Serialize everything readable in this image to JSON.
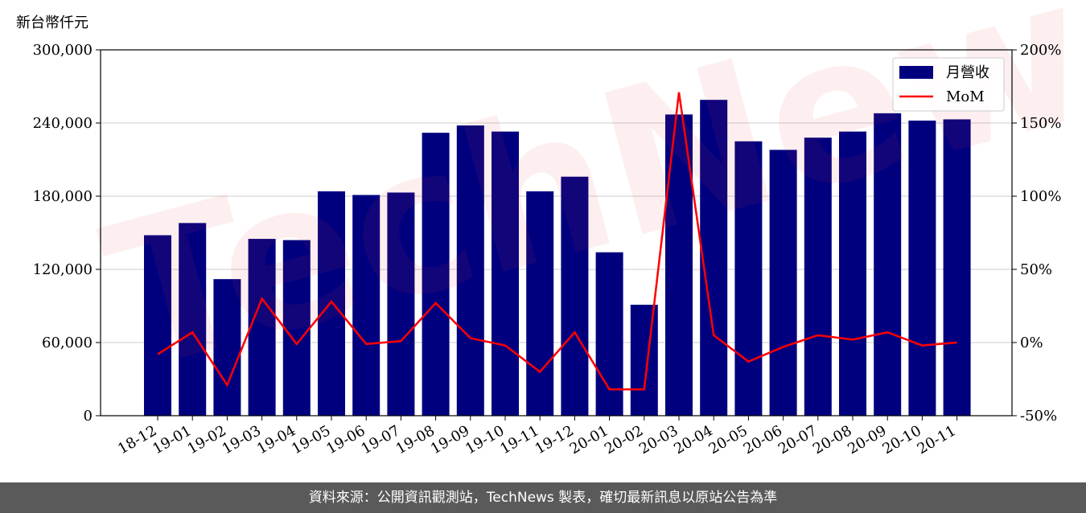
{
  "chart_data": {
    "type": "bar",
    "y_unit_label": "新台幣仟元",
    "categories": [
      "18-12",
      "19-01",
      "19-02",
      "19-03",
      "19-04",
      "19-05",
      "19-06",
      "19-07",
      "19-08",
      "19-09",
      "19-10",
      "19-11",
      "19-12",
      "20-01",
      "20-02",
      "20-03",
      "20-04",
      "20-05",
      "20-06",
      "20-07",
      "20-08",
      "20-09",
      "20-10",
      "20-11"
    ],
    "series": [
      {
        "name": "月營收",
        "kind": "bar",
        "axis": "left",
        "color": "#00007f",
        "values": [
          148000,
          158000,
          112000,
          145000,
          144000,
          184000,
          181000,
          183000,
          232000,
          238000,
          233000,
          184000,
          196000,
          134000,
          91000,
          247000,
          259000,
          225000,
          218000,
          228000,
          233000,
          248000,
          242000,
          243000
        ]
      },
      {
        "name": "MoM",
        "kind": "line",
        "axis": "right",
        "color": "#ff0000",
        "values": [
          -8,
          7,
          -29,
          30,
          -1,
          28,
          -1,
          1,
          27,
          3,
          -2,
          -20,
          7,
          -32,
          -32,
          171,
          5,
          -13,
          -3,
          5,
          2,
          7,
          -2,
          0
        ]
      }
    ],
    "y_left": {
      "ticks": [
        "0",
        "60,000",
        "120,000",
        "180,000",
        "240,000",
        "300,000"
      ],
      "ylim": [
        0,
        300000
      ]
    },
    "y_right": {
      "ticks": [
        "-50%",
        "0%",
        "50%",
        "100%",
        "150%",
        "200%"
      ],
      "ylim": [
        -50,
        200
      ]
    },
    "grid": true,
    "legend_placement": "top-right"
  },
  "footer": {
    "text": "資料來源：公開資訊觀測站，TechNews 製表，確切最新訊息以原站公告為準"
  }
}
